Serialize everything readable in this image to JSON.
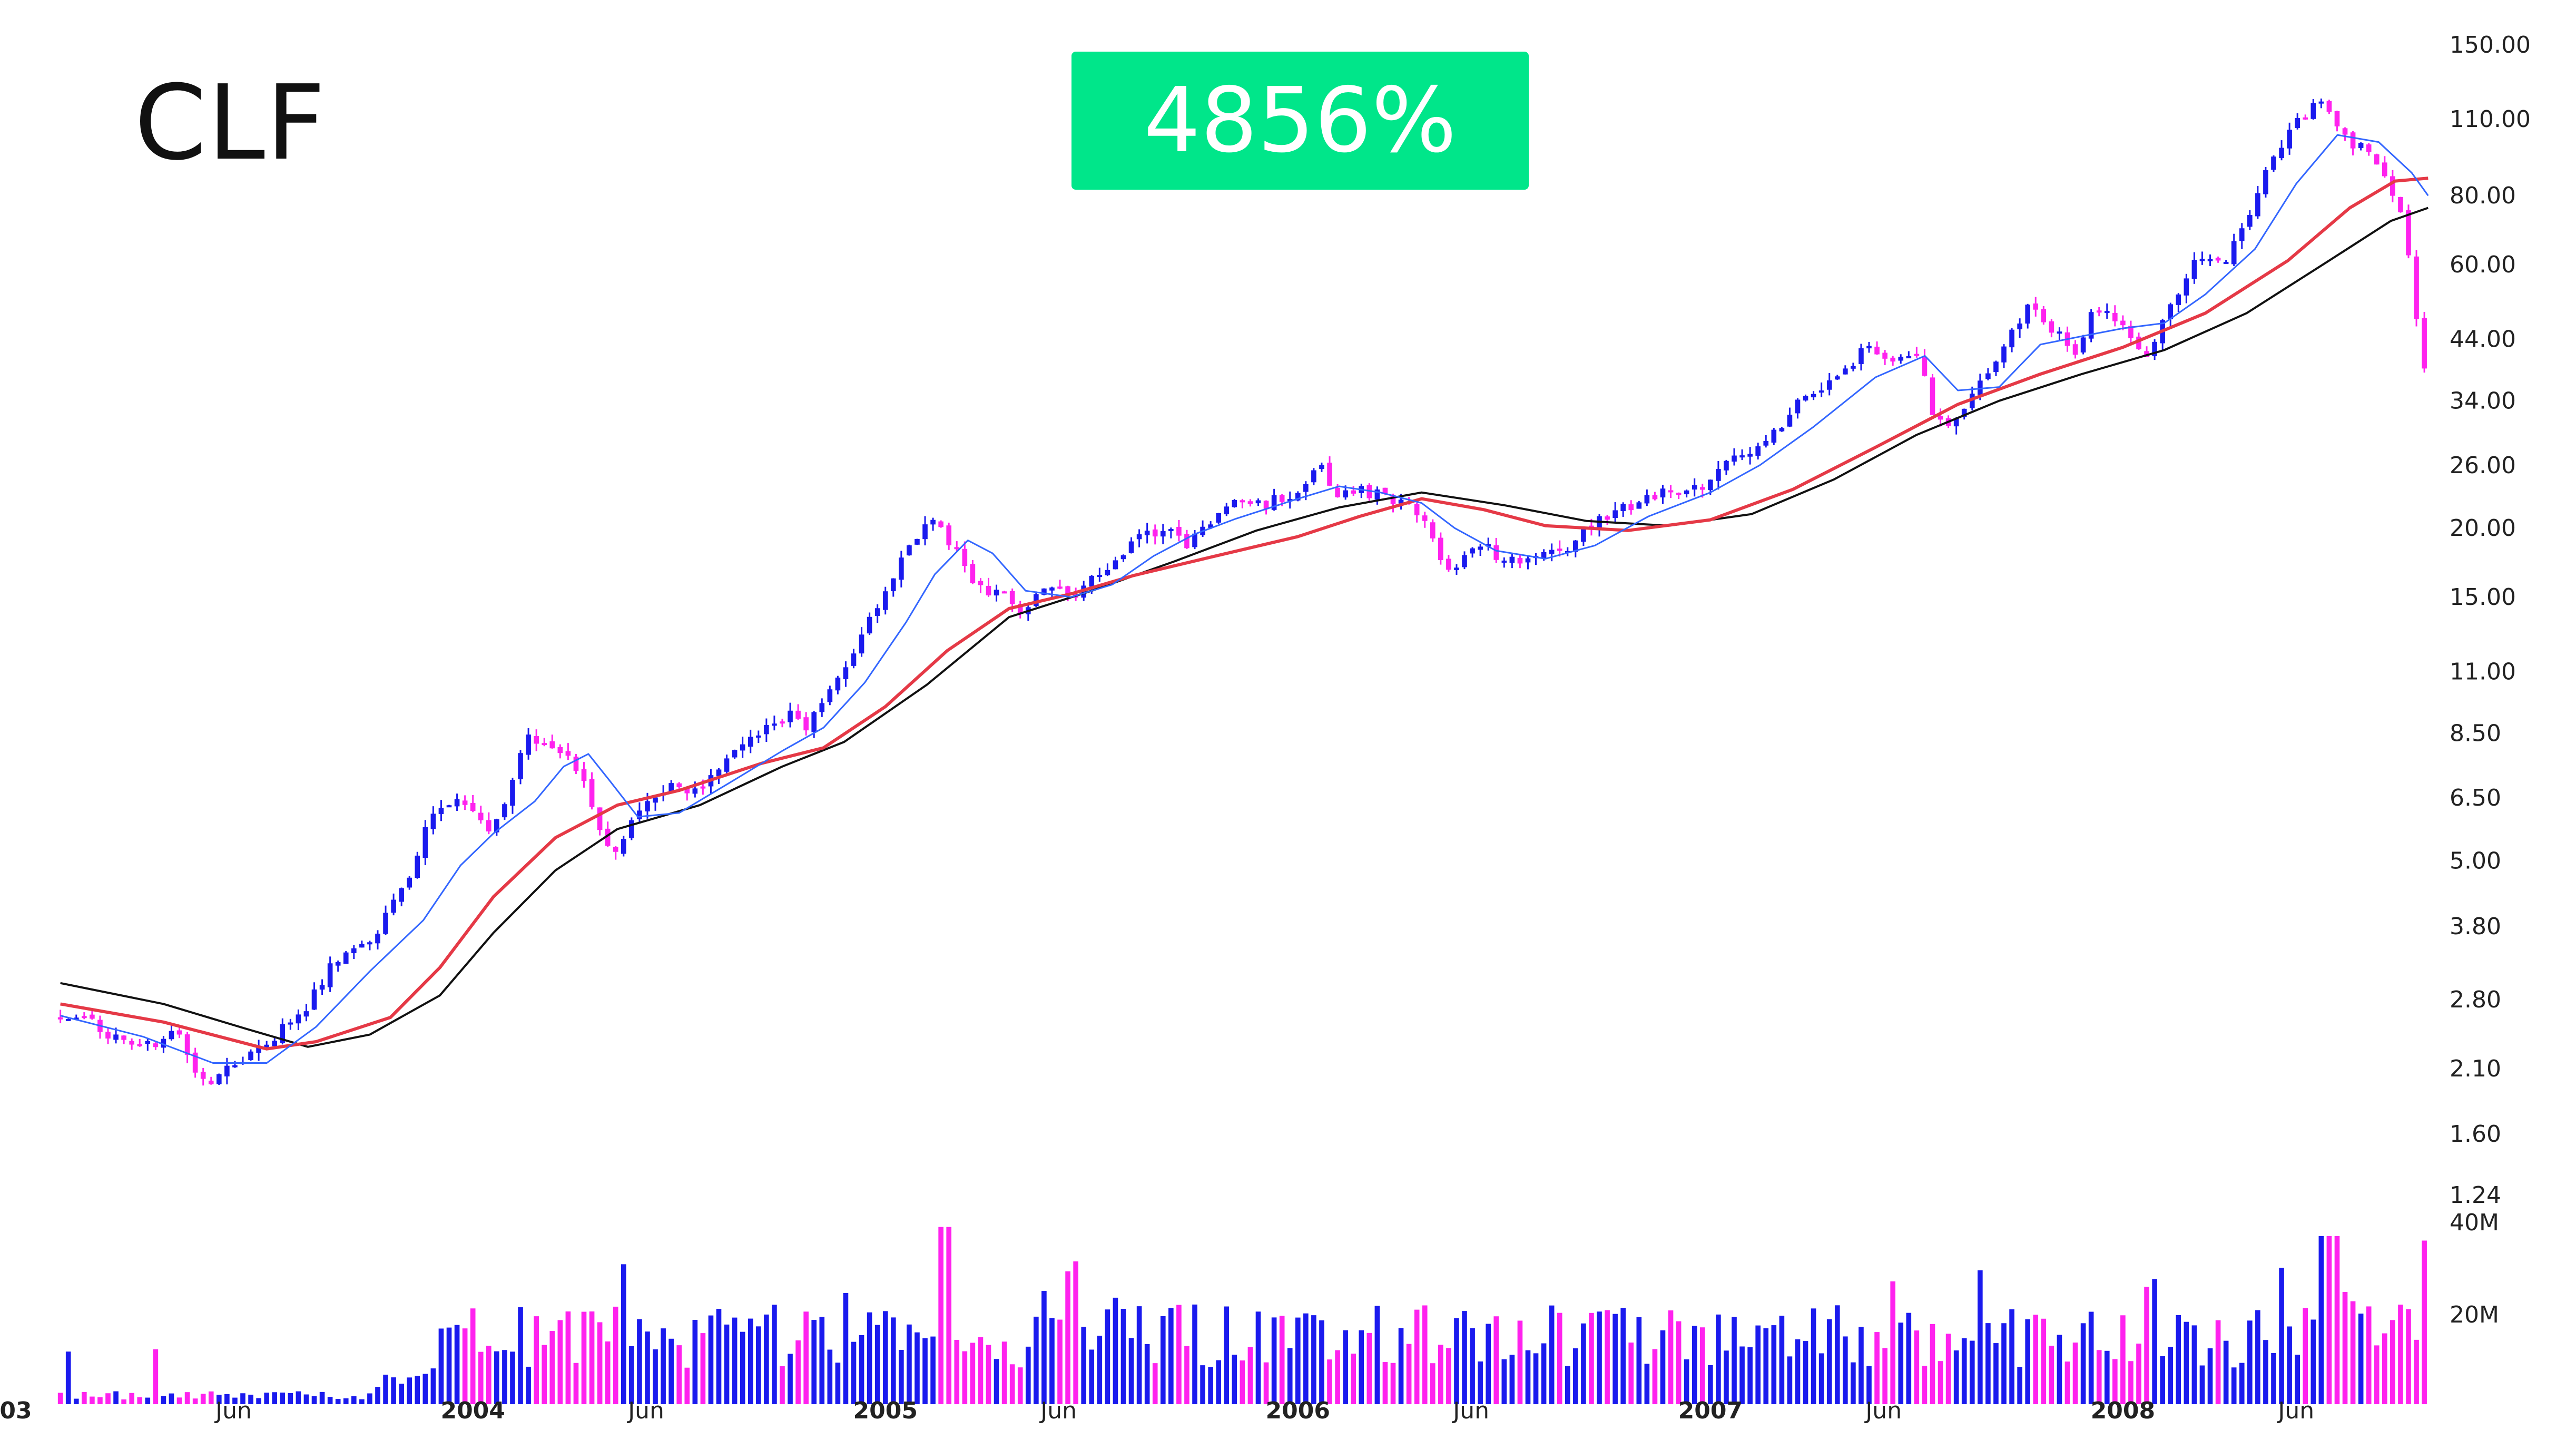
{
  "ticker": "CLF",
  "badge": {
    "text": "4856%",
    "color": "#00e68a"
  },
  "colors": {
    "up": "#1a1aee",
    "down": "#ff22ee",
    "ma_fast": "#3366ff",
    "ma_mid": "#e53946",
    "ma_slow": "#111111"
  },
  "chart_data": {
    "type": "candlestick",
    "price_scale": "log",
    "price_ticks": [
      "1.24",
      "1.60",
      "2.10",
      "2.80",
      "3.80",
      "5.00",
      "6.50",
      "8.50",
      "11.00",
      "15.00",
      "20.00",
      "26.00",
      "34.00",
      "44.00",
      "60.00",
      "80.00",
      "110.00",
      "150.00"
    ],
    "volume_ticks": [
      "20M",
      "40M"
    ],
    "x_labels": [
      {
        "text": "03",
        "t": 0.0,
        "bold": true
      },
      {
        "text": "Jun",
        "t": 2003.42,
        "bold": false
      },
      {
        "text": "2004",
        "t": 2004.0,
        "bold": true
      },
      {
        "text": "Jun",
        "t": 2004.42,
        "bold": false
      },
      {
        "text": "2005",
        "t": 2005.0,
        "bold": true
      },
      {
        "text": "Jun",
        "t": 2005.42,
        "bold": false
      },
      {
        "text": "2006",
        "t": 2006.0,
        "bold": true
      },
      {
        "text": "Jun",
        "t": 2006.42,
        "bold": false
      },
      {
        "text": "2007",
        "t": 2007.0,
        "bold": true
      },
      {
        "text": "Jun",
        "t": 2007.42,
        "bold": false
      },
      {
        "text": "2008",
        "t": 2008.0,
        "bold": true
      },
      {
        "text": "Jun",
        "t": 2008.42,
        "bold": false
      }
    ],
    "price_path": [
      [
        2003.0,
        2.6
      ],
      [
        2003.1,
        2.55
      ],
      [
        2003.2,
        2.25
      ],
      [
        2003.3,
        2.45
      ],
      [
        2003.37,
        1.95
      ],
      [
        2003.47,
        2.2
      ],
      [
        2003.55,
        2.45
      ],
      [
        2003.62,
        2.75
      ],
      [
        2003.68,
        3.3
      ],
      [
        2003.76,
        3.5
      ],
      [
        2003.85,
        4.4
      ],
      [
        2003.92,
        6.1
      ],
      [
        2004.0,
        6.4
      ],
      [
        2004.05,
        5.6
      ],
      [
        2004.1,
        6.3
      ],
      [
        2004.15,
        8.4
      ],
      [
        2004.22,
        8.1
      ],
      [
        2004.28,
        7.3
      ],
      [
        2004.33,
        5.6
      ],
      [
        2004.36,
        5.0
      ],
      [
        2004.42,
        6.1
      ],
      [
        2004.5,
        6.9
      ],
      [
        2004.56,
        6.6
      ],
      [
        2004.62,
        7.5
      ],
      [
        2004.72,
        8.5
      ],
      [
        2004.8,
        9.3
      ],
      [
        2004.83,
        8.7
      ],
      [
        2004.9,
        10.6
      ],
      [
        2004.97,
        13.3
      ],
      [
        2005.05,
        17.0
      ],
      [
        2005.12,
        21.0
      ],
      [
        2005.18,
        18.6
      ],
      [
        2005.24,
        15.5
      ],
      [
        2005.3,
        15.2
      ],
      [
        2005.34,
        14.2
      ],
      [
        2005.42,
        16.0
      ],
      [
        2005.48,
        15.1
      ],
      [
        2005.55,
        17.0
      ],
      [
        2005.62,
        19.0
      ],
      [
        2005.7,
        20.2
      ],
      [
        2005.75,
        18.8
      ],
      [
        2005.82,
        21.0
      ],
      [
        2005.88,
        23.0
      ],
      [
        2005.94,
        22.0
      ],
      [
        2006.02,
        23.5
      ],
      [
        2006.07,
        26.0
      ],
      [
        2006.12,
        23.0
      ],
      [
        2006.18,
        23.3
      ],
      [
        2006.24,
        22.7
      ],
      [
        2006.3,
        22.0
      ],
      [
        2006.36,
        18.0
      ],
      [
        2006.4,
        16.6
      ],
      [
        2006.46,
        19.0
      ],
      [
        2006.52,
        17.4
      ],
      [
        2006.6,
        17.8
      ],
      [
        2006.68,
        18.5
      ],
      [
        2006.74,
        20.6
      ],
      [
        2006.82,
        22.0
      ],
      [
        2006.9,
        23.0
      ],
      [
        2007.0,
        24.0
      ],
      [
        2007.08,
        27.0
      ],
      [
        2007.16,
        29.0
      ],
      [
        2007.24,
        34.0
      ],
      [
        2007.32,
        37.0
      ],
      [
        2007.4,
        43.0
      ],
      [
        2007.45,
        40.0
      ],
      [
        2007.52,
        42.0
      ],
      [
        2007.56,
        32.0
      ],
      [
        2007.6,
        30.0
      ],
      [
        2007.66,
        35.0
      ],
      [
        2007.74,
        44.0
      ],
      [
        2007.8,
        51.0
      ],
      [
        2007.86,
        45.0
      ],
      [
        2007.9,
        41.0
      ],
      [
        2007.95,
        50.0
      ],
      [
        2008.02,
        47.0
      ],
      [
        2008.08,
        41.0
      ],
      [
        2008.14,
        52.0
      ],
      [
        2008.2,
        62.0
      ],
      [
        2008.26,
        60.0
      ],
      [
        2008.32,
        72.0
      ],
      [
        2008.38,
        95.0
      ],
      [
        2008.45,
        110.0
      ],
      [
        2008.5,
        120.0
      ],
      [
        2008.56,
        100.0
      ],
      [
        2008.62,
        96.0
      ],
      [
        2008.66,
        85.0
      ],
      [
        2008.7,
        72.0
      ],
      [
        2008.72,
        58.0
      ],
      [
        2008.74,
        39.0
      ]
    ],
    "ma_fast_path": [
      [
        2003.0,
        2.62
      ],
      [
        2003.2,
        2.4
      ],
      [
        2003.37,
        2.15
      ],
      [
        2003.5,
        2.15
      ],
      [
        2003.62,
        2.5
      ],
      [
        2003.75,
        3.15
      ],
      [
        2003.88,
        3.9
      ],
      [
        2003.97,
        4.9
      ],
      [
        2004.05,
        5.6
      ],
      [
        2004.15,
        6.4
      ],
      [
        2004.22,
        7.4
      ],
      [
        2004.28,
        7.8
      ],
      [
        2004.33,
        7.0
      ],
      [
        2004.4,
        6.0
      ],
      [
        2004.5,
        6.1
      ],
      [
        2004.62,
        6.9
      ],
      [
        2004.75,
        7.9
      ],
      [
        2004.85,
        8.7
      ],
      [
        2004.95,
        10.5
      ],
      [
        2005.05,
        13.5
      ],
      [
        2005.12,
        16.5
      ],
      [
        2005.2,
        19.0
      ],
      [
        2005.26,
        18.0
      ],
      [
        2005.34,
        15.4
      ],
      [
        2005.45,
        15.0
      ],
      [
        2005.55,
        15.8
      ],
      [
        2005.65,
        17.8
      ],
      [
        2005.75,
        19.5
      ],
      [
        2005.85,
        20.8
      ],
      [
        2006.0,
        22.6
      ],
      [
        2006.1,
        23.8
      ],
      [
        2006.2,
        23.2
      ],
      [
        2006.3,
        22.2
      ],
      [
        2006.38,
        20.0
      ],
      [
        2006.48,
        18.2
      ],
      [
        2006.6,
        17.6
      ],
      [
        2006.72,
        18.6
      ],
      [
        2006.85,
        21.0
      ],
      [
        2007.0,
        23.2
      ],
      [
        2007.12,
        26.0
      ],
      [
        2007.25,
        30.5
      ],
      [
        2007.4,
        37.5
      ],
      [
        2007.52,
        41.0
      ],
      [
        2007.6,
        35.5
      ],
      [
        2007.7,
        36.0
      ],
      [
        2007.8,
        43.0
      ],
      [
        2007.9,
        44.5
      ],
      [
        2008.0,
        46.0
      ],
      [
        2008.1,
        47.0
      ],
      [
        2008.2,
        53.0
      ],
      [
        2008.32,
        64.0
      ],
      [
        2008.42,
        84.0
      ],
      [
        2008.52,
        103.0
      ],
      [
        2008.62,
        100.0
      ],
      [
        2008.7,
        88.0
      ],
      [
        2008.74,
        80.0
      ]
    ],
    "ma_mid_path": [
      [
        2003.0,
        2.75
      ],
      [
        2003.25,
        2.55
      ],
      [
        2003.5,
        2.28
      ],
      [
        2003.62,
        2.35
      ],
      [
        2003.8,
        2.6
      ],
      [
        2003.92,
        3.2
      ],
      [
        2004.05,
        4.3
      ],
      [
        2004.2,
        5.5
      ],
      [
        2004.35,
        6.3
      ],
      [
        2004.5,
        6.7
      ],
      [
        2004.7,
        7.5
      ],
      [
        2004.85,
        8.0
      ],
      [
        2005.0,
        9.5
      ],
      [
        2005.15,
        12.0
      ],
      [
        2005.3,
        14.3
      ],
      [
        2005.45,
        15.2
      ],
      [
        2005.6,
        16.4
      ],
      [
        2005.8,
        17.8
      ],
      [
        2006.0,
        19.3
      ],
      [
        2006.15,
        21.0
      ],
      [
        2006.3,
        22.6
      ],
      [
        2006.45,
        21.6
      ],
      [
        2006.6,
        20.2
      ],
      [
        2006.8,
        19.8
      ],
      [
        2007.0,
        20.7
      ],
      [
        2007.2,
        23.5
      ],
      [
        2007.4,
        28.0
      ],
      [
        2007.6,
        33.5
      ],
      [
        2007.8,
        38.0
      ],
      [
        2008.0,
        42.5
      ],
      [
        2008.2,
        49.0
      ],
      [
        2008.4,
        61.0
      ],
      [
        2008.55,
        76.0
      ],
      [
        2008.66,
        85.0
      ],
      [
        2008.74,
        86.0
      ]
    ],
    "ma_slow_path": [
      [
        2003.0,
        3.0
      ],
      [
        2003.25,
        2.75
      ],
      [
        2003.45,
        2.48
      ],
      [
        2003.6,
        2.3
      ],
      [
        2003.75,
        2.42
      ],
      [
        2003.92,
        2.85
      ],
      [
        2004.05,
        3.7
      ],
      [
        2004.2,
        4.8
      ],
      [
        2004.35,
        5.7
      ],
      [
        2004.55,
        6.3
      ],
      [
        2004.75,
        7.4
      ],
      [
        2004.9,
        8.2
      ],
      [
        2005.1,
        10.4
      ],
      [
        2005.3,
        13.8
      ],
      [
        2005.5,
        15.4
      ],
      [
        2005.7,
        17.4
      ],
      [
        2005.9,
        19.8
      ],
      [
        2006.1,
        21.8
      ],
      [
        2006.3,
        23.2
      ],
      [
        2006.5,
        22.0
      ],
      [
        2006.7,
        20.6
      ],
      [
        2006.9,
        20.2
      ],
      [
        2007.1,
        21.2
      ],
      [
        2007.3,
        24.5
      ],
      [
        2007.5,
        29.5
      ],
      [
        2007.7,
        34.0
      ],
      [
        2007.9,
        38.0
      ],
      [
        2008.1,
        42.0
      ],
      [
        2008.3,
        49.0
      ],
      [
        2008.5,
        61.0
      ],
      [
        2008.65,
        72.0
      ],
      [
        2008.74,
        76.0
      ]
    ]
  }
}
